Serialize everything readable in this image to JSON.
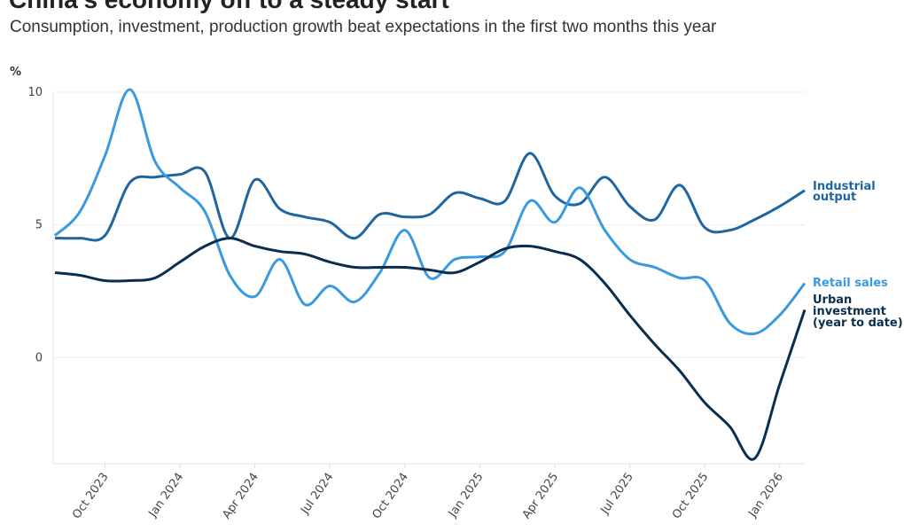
{
  "chart_data": {
    "type": "line",
    "title": "China's economy off to a steady start",
    "subtitle": "Consumption, investment, production growth beat expectations in the first two months this year",
    "ylabel": "%",
    "ylim": [
      -4,
      10
    ],
    "yticks": [
      0,
      5,
      10
    ],
    "grid": true,
    "legend": "inline-right",
    "x": [
      "2023-08",
      "2023-09",
      "2023-10",
      "2023-11",
      "2023-12",
      "2024-01",
      "2024-02",
      "2024-03",
      "2024-04",
      "2024-05",
      "2024-06",
      "2024-07",
      "2024-08",
      "2024-09",
      "2024-10",
      "2024-11",
      "2024-12",
      "2025-01",
      "2025-02",
      "2025-03",
      "2025-04",
      "2025-05",
      "2025-06",
      "2025-07",
      "2025-08",
      "2025-09",
      "2025-10",
      "2025-11",
      "2025-12",
      "2026-01",
      "2026-02"
    ],
    "xticks": [
      {
        "date": "2023-10",
        "label": "Oct 2023"
      },
      {
        "date": "2024-01",
        "label": "Jan 2024"
      },
      {
        "date": "2024-04",
        "label": "Apr 2024"
      },
      {
        "date": "2024-07",
        "label": "Jul 2024"
      },
      {
        "date": "2024-10",
        "label": "Oct 2024"
      },
      {
        "date": "2025-01",
        "label": "Jan 2025"
      },
      {
        "date": "2025-04",
        "label": "Apr 2025"
      },
      {
        "date": "2025-07",
        "label": "Jul 2025"
      },
      {
        "date": "2025-10",
        "label": "Oct 2025"
      },
      {
        "date": "2026-01",
        "label": "Jan 2026"
      }
    ],
    "series": [
      {
        "name": "Industrial output",
        "label_lines": [
          "Industrial",
          "output"
        ],
        "color": "#1f65a0",
        "values": [
          4.5,
          4.5,
          4.6,
          6.6,
          6.8,
          6.9,
          7.0,
          4.5,
          6.7,
          5.6,
          5.3,
          5.1,
          4.5,
          5.4,
          5.3,
          5.4,
          6.2,
          6.0,
          5.9,
          7.7,
          6.1,
          5.8,
          6.8,
          5.7,
          5.2,
          6.5,
          4.9,
          4.8,
          5.2,
          5.7,
          6.3
        ]
      },
      {
        "name": "Retail sales",
        "label_lines": [
          "Retail sales"
        ],
        "color": "#3a9ae0",
        "values": [
          4.6,
          5.5,
          7.6,
          10.1,
          7.4,
          6.4,
          5.5,
          3.1,
          2.3,
          3.7,
          2.0,
          2.7,
          2.1,
          3.2,
          4.8,
          3.0,
          3.7,
          3.8,
          4.0,
          5.9,
          5.1,
          6.4,
          4.8,
          3.7,
          3.4,
          3.0,
          2.9,
          1.3,
          0.9,
          1.6,
          2.8
        ]
      },
      {
        "name": "Urban investment (year to date)",
        "label_lines": [
          "Urban",
          "investment",
          "(year to date)"
        ],
        "color": "#0c2e4e",
        "values": [
          3.2,
          3.1,
          2.9,
          2.9,
          3.0,
          3.6,
          4.2,
          4.5,
          4.2,
          4.0,
          3.9,
          3.6,
          3.4,
          3.4,
          3.4,
          3.3,
          3.2,
          3.6,
          4.1,
          4.2,
          4.0,
          3.7,
          2.8,
          1.6,
          0.5,
          -0.5,
          -1.7,
          -2.6,
          -3.8,
          -1.0,
          1.8
        ]
      }
    ]
  }
}
